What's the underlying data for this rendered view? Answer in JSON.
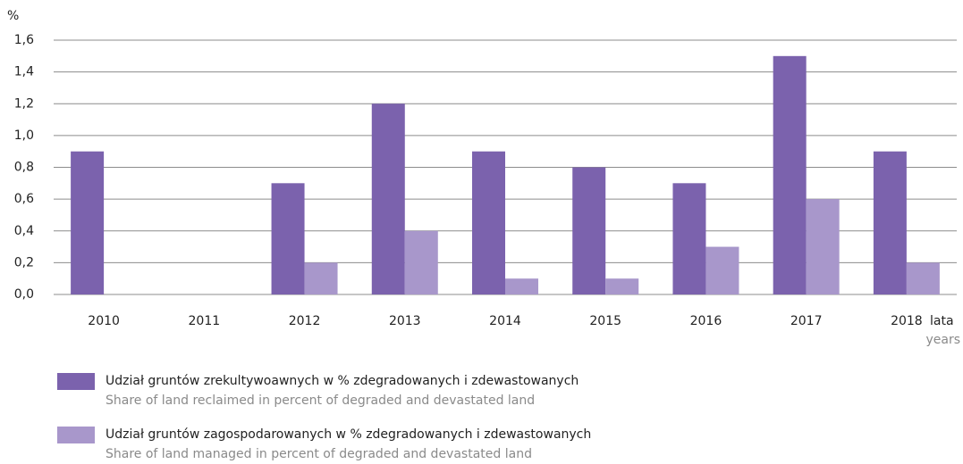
{
  "chart_data": {
    "type": "bar",
    "y_unit": "%",
    "x_label": "lata",
    "x_label_en": "years",
    "categories": [
      "2010",
      "2011",
      "2012",
      "2013",
      "2014",
      "2015",
      "2016",
      "2017",
      "2018"
    ],
    "series": [
      {
        "name": "Udział gruntów zrekultywoawnych w % zdegradowanych i zdewastowanych",
        "name_en": "Share of  land reclaimed in percent of degraded and devastated land",
        "color": "#7b62ad",
        "values": [
          0.9,
          null,
          0.7,
          1.2,
          0.9,
          0.8,
          0.7,
          1.5,
          0.9
        ]
      },
      {
        "name": "Udział gruntów zagospodarowanych w % zdegradowanych i zdewastowanych",
        "name_en": "Share of land managed  in percent of degraded and devastated land",
        "color": "#a897cb",
        "values": [
          null,
          null,
          0.2,
          0.4,
          0.1,
          0.1,
          0.3,
          0.6,
          0.2
        ]
      }
    ],
    "ylim": [
      0,
      1.6
    ],
    "yticks": [
      {
        "value": 0,
        "label": "0,0"
      },
      {
        "value": 0.2,
        "label": "0,2"
      },
      {
        "value": 0.4,
        "label": "0,4"
      },
      {
        "value": 0.6,
        "label": "0,6"
      },
      {
        "value": 0.8,
        "label": "0,8"
      },
      {
        "value": 1.0,
        "label": "1,0"
      },
      {
        "value": 1.2,
        "label": "1,2"
      },
      {
        "value": 1.4,
        "label": "1,4"
      },
      {
        "value": 1.6,
        "label": "1,6"
      }
    ],
    "grid": true
  }
}
